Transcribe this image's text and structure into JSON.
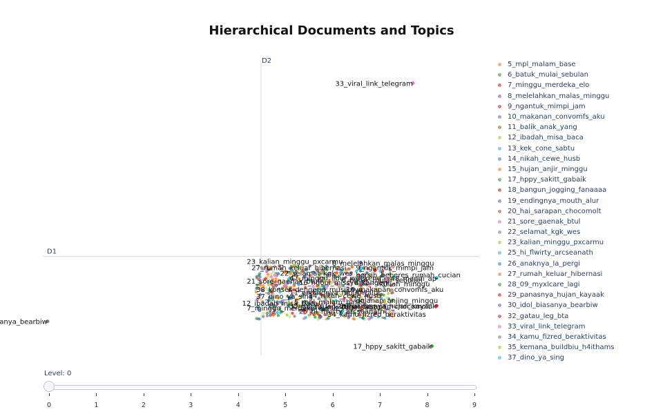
{
  "chart_data": {
    "type": "scatter",
    "title": "Hierarchical Documents and Topics",
    "xlabel": "D1",
    "ylabel": "D2",
    "legend_position": "right",
    "points": [
      {
        "topic": "33_viral_link_telegram",
        "x": 3.2,
        "y": 5.6,
        "color": "#e377c2",
        "label": "33_viral_link_telegram"
      },
      {
        "topic": "17_hppy_sakitt_gabaik",
        "x": 3.6,
        "y": -2.9,
        "color": "#2ca02c",
        "label": "17_hppy_sakitt_gabaik"
      },
      {
        "topic": "30_idol_biasanya_bearbiw",
        "x": -4.5,
        "y": -2.1,
        "color": "#7f7f7f",
        "label": "30_idol_biasanya_bearbiw"
      },
      {
        "topic": "29_panasnya_hujan_kayaak",
        "x": 3.7,
        "y": -1.6,
        "color": "#d62728",
        "label": "29_panasnya_hujan_kayaak"
      },
      {
        "topic": "48_mandi_ap",
        "x": 3.7,
        "y": -0.7,
        "color": "#17becf",
        "label": "48_mandi_ap"
      },
      {
        "topic": "23_kalian_minggu_pxcarmu",
        "x": 0.7,
        "y": -0.3,
        "color": "#bcbd22",
        "label": "23_kalian_minggu_pxcarmu"
      },
      {
        "topic": "27_rumah_keluar_hibernasi",
        "x": 0.5,
        "y": -0.5,
        "color": "#ff7f0e",
        "label": "27_rumah_keluar_hibernasi"
      },
      {
        "topic": "21_sore_gaenak_btul",
        "x": 0.5,
        "y": -0.95,
        "color": "#e377c2",
        "label": "21_sore_gaenak_btul"
      },
      {
        "topic": "38_konser_dengerin_musiknya",
        "x": 0.6,
        "y": -1.1,
        "color": "#8c564b",
        "label": "38_konser_dengerin_musiknya"
      },
      {
        "topic": "37_dino_ya_sing",
        "x": 0.6,
        "y": -1.35,
        "color": "#1f77b4",
        "label": "37_dino_ya_sing"
      },
      {
        "topic": "12_ibadah_misa_baca",
        "x": 0.8,
        "y": -1.6,
        "color": "#bcbd22",
        "label": "12_ibadah_misa_baca"
      },
      {
        "topic": "7_minggu_merdeka_elo",
        "x": 0.9,
        "y": -1.75,
        "color": "#d62728",
        "label": "7_minggu_merdeka_elo"
      },
      {
        "topic": "34_kamu_fizred_beraktivitas",
        "x": 1.7,
        "y": -1.8,
        "color": "#17becf",
        "label": "34_kamu_fizred_beraktivitas"
      },
      {
        "topic": "5_mpl_malam_base",
        "x": 1.2,
        "y": -1.55,
        "color": "#ff7f0e",
        "label": "5_mpl_malam_base"
      },
      {
        "topic": "9_ngantuk_mimpi_jam",
        "x": 2.4,
        "y": -0.45,
        "color": "#d62728",
        "label": "9_ngantuk_mimpi_jam"
      },
      {
        "topic": "6_batuk_mulai_sebulan",
        "x": 2.0,
        "y": -0.85,
        "color": "#2ca02c",
        "label": "6_batuk_mulai_sebulan"
      },
      {
        "topic": "10_makanan_convomfs_aku",
        "x": 2.2,
        "y": -1.15,
        "color": "#9467bd",
        "label": "10_makanan_convomfs_aku"
      },
      {
        "topic": "8_melelahkan_malas_minggu",
        "x": 2.1,
        "y": -0.2,
        "color": "#9467bd",
        "label": "8_melelahkan_malas_minggu"
      },
      {
        "topic": "35_kemana_buildbiu_h4ithams",
        "x": 2.6,
        "y": -1.45,
        "color": "#bcbd22",
        "label": "35_kemana_buildbiu_h4ithams"
      },
      {
        "topic": "22_selamat_kgk_wes",
        "x": 1.4,
        "y": -0.6,
        "color": "#7f7f7f",
        "label": "22_selamat_kgk_wes"
      }
    ],
    "cluster_labels": [
      {
        "text": "23_kalian_minggu_pxcarmu",
        "x": -0.3,
        "y": -0.25
      },
      {
        "text": "8_melelahkan_malas_minggu",
        "x": 1.5,
        "y": -0.3
      },
      {
        "text": "27_rumah_keluar_hibernasi",
        "x": -0.2,
        "y": -0.45
      },
      {
        "text": "9_ngantuk_mimpi_jam",
        "x": 2.0,
        "y": -0.45
      },
      {
        "text": "22_selamat_kgk_wes",
        "x": 0.4,
        "y": -0.62
      },
      {
        "text": "bersih_beberes_rumah_cucian",
        "x": 2.0,
        "y": -0.68
      },
      {
        "text": "47_minggu_libur_weekend",
        "x": 0.6,
        "y": -0.78
      },
      {
        "text": "6_batuk_mulai_sebulan",
        "x": 1.7,
        "y": -0.85
      },
      {
        "text": "21_sore_gaenak_btul",
        "x": -0.3,
        "y": -0.88
      },
      {
        "text": "16_ngopi_missyu_kangen",
        "x": 0.8,
        "y": -0.92
      },
      {
        "text": "kuliah_minggu",
        "x": 2.5,
        "y": -0.97
      },
      {
        "text": "38_konser_dengerin_musiknya",
        "x": -0.1,
        "y": -1.15
      },
      {
        "text": "10_makanan_convomfs_aku",
        "x": 1.8,
        "y": -1.15
      },
      {
        "text": "11_endingnya_mouth_alur",
        "x": 0.6,
        "y": -1.25
      },
      {
        "text": "37_dino_ya_sing",
        "x": -0.1,
        "y": -1.37
      },
      {
        "text": "14_nikah_cewe_husb",
        "x": 1.0,
        "y": -1.35
      },
      {
        "text": "dolanan_anjing_minggu",
        "x": 2.0,
        "y": -1.5
      },
      {
        "text": "12_ibadah_misa_baca",
        "x": -0.4,
        "y": -1.6
      },
      {
        "text": "5_mpl_malam_base",
        "x": 0.7,
        "y": -1.55
      },
      {
        "text": "7_minggu_merdeka_elo",
        "x": -0.3,
        "y": -1.75
      },
      {
        "text": "32_gatau_leg_bta",
        "x": 0.6,
        "y": -1.7
      },
      {
        "text": "13_kek_cone_sabtu",
        "x": 1.1,
        "y": -1.72
      },
      {
        "text": "20_hai_sarapan_chocomolt",
        "x": 1.6,
        "y": -1.7
      },
      {
        "text": "25_hi_flwirty_arcseanath",
        "x": 0.8,
        "y": -1.85
      },
      {
        "text": "34_kamu_fizred_beraktivitas",
        "x": 1.4,
        "y": -1.95
      }
    ],
    "legend_entries": [
      {
        "name": "5_mpl_malam_base",
        "color": "#f4b183"
      },
      {
        "name": "6_batuk_mulai_sebulan",
        "color": "#7cc47c"
      },
      {
        "name": "7_minggu_merdeka_elo",
        "color": "#e07b7b"
      },
      {
        "name": "8_melelahkan_malas_minggu",
        "color": "#b79ad4"
      },
      {
        "name": "9_ngantuk_mimpi_jam",
        "color": "#e07b7b"
      },
      {
        "name": "10_makanan_convomfs_aku",
        "color": "#b79ad4"
      },
      {
        "name": "11_balik_anak_yang",
        "color": "#c49a8e"
      },
      {
        "name": "12_ibadah_misa_baca",
        "color": "#d8d87a"
      },
      {
        "name": "13_kek_cone_sabtu",
        "color": "#7fd6e0"
      },
      {
        "name": "14_nikah_cewe_husb",
        "color": "#7fb1dc"
      },
      {
        "name": "15_hujan_anjir_minggu",
        "color": "#f4b183"
      },
      {
        "name": "17_hppy_sakitt_gabaik",
        "color": "#7cc47c"
      },
      {
        "name": "18_bangun_jogging_fanaaaa",
        "color": "#e07b7b"
      },
      {
        "name": "19_endingnya_mouth_alur",
        "color": "#b79ad4"
      },
      {
        "name": "20_hai_sarapan_chocomolt",
        "color": "#c49a8e"
      },
      {
        "name": "21_sore_gaenak_btul",
        "color": "#f0a8d6"
      },
      {
        "name": "22_selamat_kgk_wes",
        "color": "#b5b5b5"
      },
      {
        "name": "23_kalian_minggu_pxcarmu",
        "color": "#d8d87a"
      },
      {
        "name": "25_hi_flwirty_arcseanath",
        "color": "#7fd6e0"
      },
      {
        "name": "26_anaknya_la_pergi",
        "color": "#7fb1dc"
      },
      {
        "name": "27_rumah_keluar_hibernasi",
        "color": "#f4b183"
      },
      {
        "name": "28_09_myxlcare_lagi",
        "color": "#7cc47c"
      },
      {
        "name": "29_panasnya_hujan_kayaak",
        "color": "#e07b7b"
      },
      {
        "name": "30_idol_biasanya_bearbiw",
        "color": "#b79ad4"
      },
      {
        "name": "32_gatau_leg_bta",
        "color": "#e07b7b"
      },
      {
        "name": "33_viral_link_telegram",
        "color": "#f0a8d6"
      },
      {
        "name": "34_kamu_fizred_beraktivitas",
        "color": "#b5b5b5"
      },
      {
        "name": "35_kemana_buildbiu_h4ithams",
        "color": "#d8d87a"
      },
      {
        "name": "37_dino_ya_sing",
        "color": "#7fd6e0"
      }
    ],
    "xlim": [
      -4.6,
      4.6
    ],
    "ylim": [
      -3.2,
      6.5
    ],
    "grid": false
  },
  "slider": {
    "label": "Level: 0",
    "value": 0,
    "ticks": [
      "0",
      "1",
      "2",
      "3",
      "4",
      "5",
      "6",
      "7",
      "8",
      "9"
    ]
  }
}
